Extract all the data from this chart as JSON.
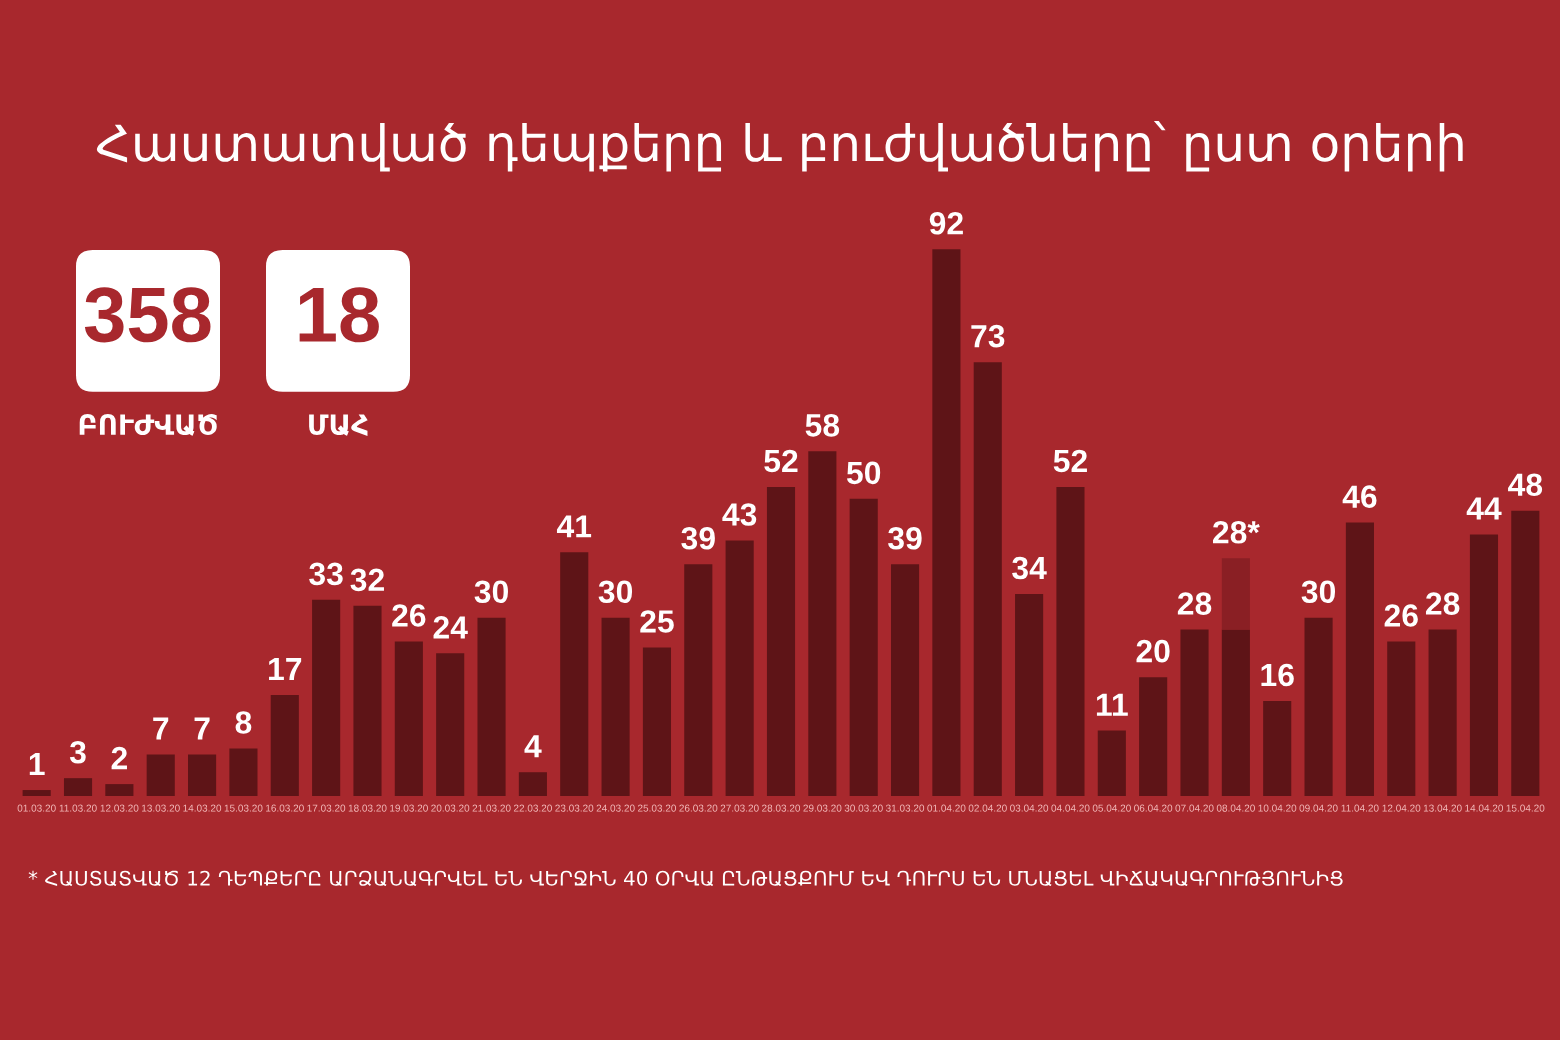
{
  "chart_data": [
    {
      "type": "bar",
      "title": "Հաստատված դեպքերը և բուժվածները՝ ըստ օրերի",
      "categories": [
        "01.03.20",
        "11.03.20",
        "12.03.20",
        "13.03.20",
        "14.03.20",
        "15.03.20",
        "16.03.20",
        "17.03.20",
        "18.03.20",
        "19.03.20",
        "20.03.20",
        "21.03.20",
        "22.03.20",
        "23.03.20",
        "24.03.20",
        "25.03.20",
        "26.03.20",
        "27.03.20",
        "28.03.20",
        "29.03.20",
        "30.03.20",
        "31.03.20",
        "01.04.20",
        "02.04.20",
        "03.04.20",
        "04.04.20",
        "05.04.20",
        "06.04.20",
        "07.04.20",
        "08.04.20",
        "10.04.20",
        "09.04.20",
        "11.04.20",
        "12.04.20",
        "13.04.20",
        "14.04.20",
        "15.04.20"
      ],
      "stacked": true,
      "series": [
        {
          "color": "#5e1417",
          "values": [
            1,
            3,
            2,
            7,
            7,
            8,
            17,
            33,
            32,
            26,
            24,
            30,
            4,
            41,
            30,
            25,
            39,
            43,
            52,
            58,
            50,
            39,
            92,
            73,
            34,
            52,
            11,
            20,
            28,
            28,
            16,
            30,
            46,
            26,
            28,
            44,
            48
          ],
          "value_labels": [
            "1",
            "3",
            "2",
            "7",
            "7",
            "8",
            "17",
            "33",
            "32",
            "26",
            "24",
            "30",
            "4",
            "41",
            "30",
            "25",
            "39",
            "43",
            "52",
            "58",
            "50",
            "39",
            "92",
            "73",
            "34",
            "52",
            "11",
            "20",
            "28",
            "28*",
            "16",
            "30",
            "46",
            "26",
            "28",
            "44",
            "48"
          ]
        },
        {
          "color": "#8a1f24",
          "values": [
            null,
            null,
            null,
            null,
            null,
            null,
            null,
            null,
            null,
            null,
            null,
            null,
            null,
            null,
            null,
            null,
            null,
            null,
            null,
            null,
            null,
            null,
            null,
            null,
            null,
            null,
            null,
            null,
            null,
            12,
            null,
            null,
            null,
            null,
            null,
            null,
            null
          ]
        }
      ],
      "tick_labels": "x",
      "annotations": [
        "* ՀԱՍՏԱՏՎԱԾ 12 ԴԵՊՔԵՐԸ ԱՐՁԱՆԱԳՐՎԵԼ ԵՆ ՎԵՐՋԻՆ 40 ՕՐՎԱ ԸՆԹԱՑՔՈՒՄ ԵՎ ԴՈՒՐՍ ԵՆ ՄՆԱՑԵԼ ՎԻՃԱԿԱԳՐՈՒԹՅՈՒՆԻՑ"
      ]
    },
    {
      "type": "other",
      "categories": [
        "ԲՈՒԺՎԱԾ",
        "ՄԱՀ"
      ],
      "values": [
        358,
        18
      ],
      "color": "#ffffff",
      "data_labels": true
    }
  ]
}
